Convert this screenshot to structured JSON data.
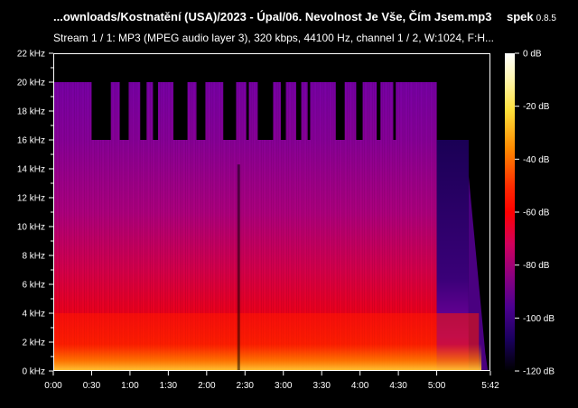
{
  "window": {
    "title": "...ownloads/Kostnatění (USA)/2023 - Úpal/06. Nevolnost Je Vše, Čím Jsem.mp3",
    "app_name": "spek",
    "app_version": "0.8.5",
    "stream_info": "Stream 1 / 1: MP3 (MPEG audio layer 3), 320 kbps, 44100 Hz, channel 1 / 2, W:1024, F:H..."
  },
  "axes": {
    "frequency_ticks": [
      "22 kHz",
      "20 kHz",
      "18 kHz",
      "16 kHz",
      "14 kHz",
      "12 kHz",
      "10 kHz",
      "8 kHz",
      "6 kHz",
      "4 kHz",
      "2 kHz",
      "0 kHz"
    ],
    "time_ticks": [
      "0:00",
      "0:30",
      "1:00",
      "1:30",
      "2:00",
      "2:30",
      "3:00",
      "3:30",
      "4:00",
      "4:30",
      "5:00",
      "5:42"
    ],
    "db_ticks": [
      "0 dB",
      "-20 dB",
      "-40 dB",
      "-60 dB",
      "-80 dB",
      "-100 dB",
      "-120 dB"
    ]
  },
  "colors": {
    "background": "#000000",
    "text": "#ffffff",
    "hot": "#ffe03a",
    "red": "#ff1a00",
    "magenta": "#b0007a",
    "purple": "#6b00a0",
    "deep": "#1a004a"
  }
}
